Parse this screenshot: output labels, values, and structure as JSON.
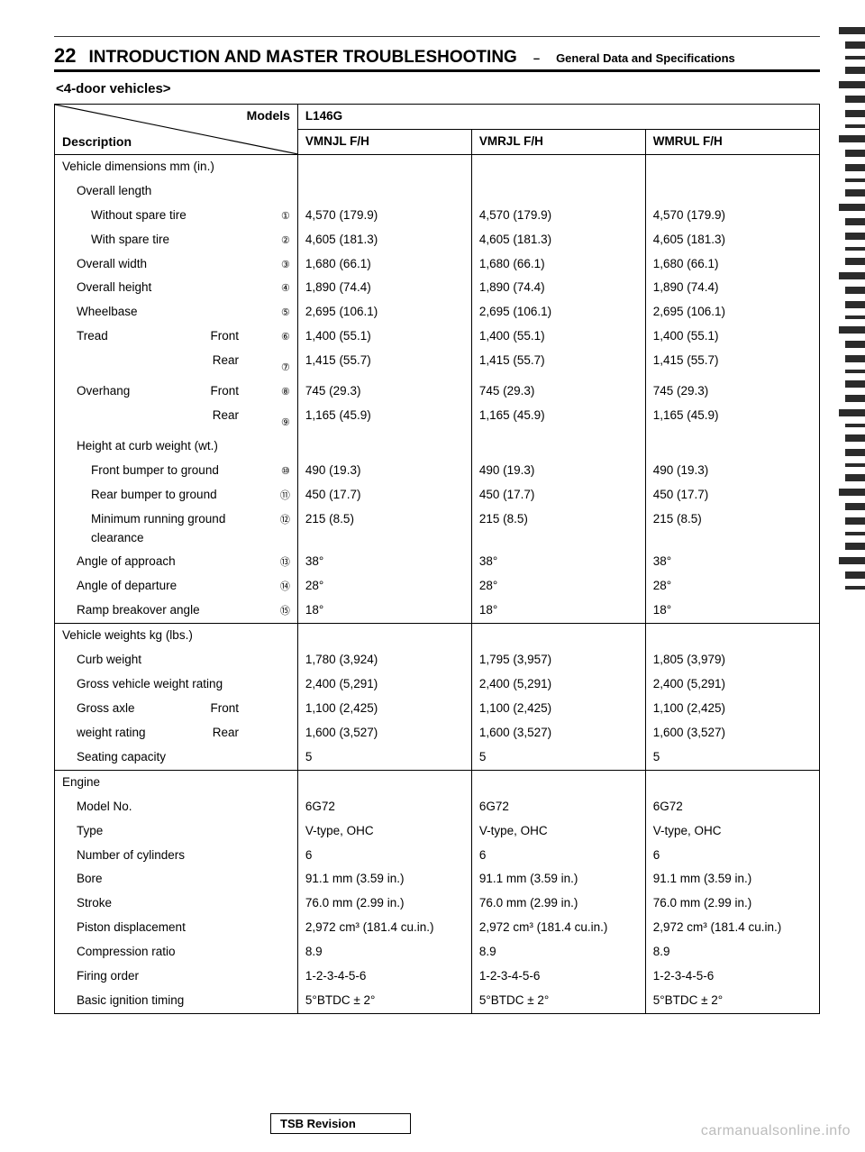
{
  "page_number": "22",
  "header_title": "INTRODUCTION AND MASTER TROUBLESHOOTING",
  "header_dash": "–",
  "header_sub": "General Data and Specifications",
  "section_title": "<4-door vehicles>",
  "table": {
    "models_label": "Models",
    "description_label": "Description",
    "model_header": "L146G",
    "variant_headers": [
      "VMNJL F/H",
      "VMRJL F/H",
      "WMRUL F/H"
    ],
    "groups": [
      {
        "rows": [
          {
            "label": "Vehicle dimensions      mm (in.)",
            "indent": 0,
            "marker": "",
            "v": [
              "",
              "",
              ""
            ]
          },
          {
            "label": "Overall length",
            "indent": 1,
            "marker": "",
            "v": [
              "",
              "",
              ""
            ]
          },
          {
            "label": "Without spare tire",
            "indent": 2,
            "marker": "①",
            "v": [
              "4,570 (179.9)",
              "4,570 (179.9)",
              "4,570 (179.9)"
            ]
          },
          {
            "label": "With spare tire",
            "indent": 2,
            "marker": "②",
            "v": [
              "4,605 (181.3)",
              "4,605 (181.3)",
              "4,605 (181.3)"
            ]
          },
          {
            "label": "Overall width",
            "indent": 1,
            "marker": "③",
            "v": [
              "1,680 (66.1)",
              "1,680 (66.1)",
              "1,680 (66.1)"
            ]
          },
          {
            "label": "Overall height",
            "indent": 1,
            "marker": "④",
            "v": [
              "1,890 (74.4)",
              "1,890 (74.4)",
              "1,890 (74.4)"
            ]
          },
          {
            "label": "Wheelbase",
            "indent": 1,
            "marker": "⑤",
            "v": [
              "2,695 (106.1)",
              "2,695 (106.1)",
              "2,695 (106.1)"
            ]
          },
          {
            "label": "Tread",
            "sublabel": "Front",
            "indent": 1,
            "marker": "⑥",
            "v": [
              "1,400 (55.1)",
              "1,400 (55.1)",
              "1,400 (55.1)"
            ]
          },
          {
            "label": "",
            "sublabel": "Rear",
            "indent": 1,
            "marker": "⑦",
            "v": [
              "1,415 (55.7)",
              "1,415 (55.7)",
              "1,415 (55.7)"
            ]
          },
          {
            "label": "Overhang",
            "sublabel": "Front",
            "indent": 1,
            "marker": "⑧",
            "v": [
              "745 (29.3)",
              "745 (29.3)",
              "745 (29.3)"
            ]
          },
          {
            "label": "",
            "sublabel": "Rear",
            "indent": 1,
            "marker": "⑨",
            "v": [
              "1,165 (45.9)",
              "1,165 (45.9)",
              "1,165 (45.9)"
            ]
          },
          {
            "label": "Height at curb weight      (wt.)",
            "indent": 1,
            "marker": "",
            "v": [
              "",
              "",
              ""
            ]
          },
          {
            "label": "Front bumper to ground",
            "indent": 2,
            "marker": "⑩",
            "v": [
              "490 (19.3)",
              "490 (19.3)",
              "490 (19.3)"
            ]
          },
          {
            "label": "Rear bumper to ground",
            "indent": 2,
            "marker": "⑪",
            "v": [
              "450 (17.7)",
              "450 (17.7)",
              "450 (17.7)"
            ]
          },
          {
            "label": "Minimum running ground clearance",
            "indent": 2,
            "marker": "⑫",
            "v": [
              "215 (8.5)",
              "215 (8.5)",
              "215 (8.5)"
            ]
          },
          {
            "label": "Angle of approach",
            "indent": 1,
            "marker": "⑬",
            "v": [
              "38°",
              "38°",
              "38°"
            ]
          },
          {
            "label": "Angle of departure",
            "indent": 1,
            "marker": "⑭",
            "v": [
              "28°",
              "28°",
              "28°"
            ]
          },
          {
            "label": "Ramp breakover angle",
            "indent": 1,
            "marker": "⑮",
            "v": [
              "18°",
              "18°",
              "18°"
            ]
          }
        ]
      },
      {
        "rows": [
          {
            "label": "Vehicle weights      kg (lbs.)",
            "indent": 0,
            "marker": "",
            "v": [
              "",
              "",
              ""
            ]
          },
          {
            "label": "Curb weight",
            "indent": 1,
            "marker": "",
            "v": [
              "1,780 (3,924)",
              "1,795 (3,957)",
              "1,805 (3,979)"
            ]
          },
          {
            "label": "Gross vehicle weight rating",
            "indent": 1,
            "marker": "",
            "v": [
              "2,400 (5,291)",
              "2,400 (5,291)",
              "2,400 (5,291)"
            ]
          },
          {
            "label": "Gross axle",
            "sublabel": "Front",
            "indent": 1,
            "marker": "",
            "v": [
              "1,100 (2,425)",
              "1,100 (2,425)",
              "1,100 (2,425)"
            ]
          },
          {
            "label": "weight rating",
            "sublabel": "Rear",
            "indent": 1,
            "marker": "",
            "v": [
              "1,600 (3,527)",
              "1,600 (3,527)",
              "1,600 (3,527)"
            ]
          },
          {
            "label": "Seating capacity",
            "indent": 1,
            "marker": "",
            "v": [
              "5",
              "5",
              "5"
            ]
          }
        ]
      },
      {
        "rows": [
          {
            "label": "Engine",
            "indent": 0,
            "marker": "",
            "v": [
              "",
              "",
              ""
            ]
          },
          {
            "label": "Model No.",
            "indent": 1,
            "marker": "",
            "v": [
              "6G72",
              "6G72",
              "6G72"
            ]
          },
          {
            "label": "Type",
            "indent": 1,
            "marker": "",
            "v": [
              "V-type, OHC",
              "V-type, OHC",
              "V-type, OHC"
            ]
          },
          {
            "label": "Number of cylinders",
            "indent": 1,
            "marker": "",
            "v": [
              "6",
              "6",
              "6"
            ]
          },
          {
            "label": "Bore",
            "indent": 1,
            "marker": "",
            "v": [
              "91.1 mm (3.59 in.)",
              "91.1 mm (3.59 in.)",
              "91.1 mm (3.59 in.)"
            ]
          },
          {
            "label": "Stroke",
            "indent": 1,
            "marker": "",
            "v": [
              "76.0 mm (2.99 in.)",
              "76.0 mm (2.99 in.)",
              "76.0 mm (2.99 in.)"
            ]
          },
          {
            "label": "Piston displacement",
            "indent": 1,
            "marker": "",
            "v": [
              "2,972 cm³ (181.4 cu.in.)",
              "2,972 cm³ (181.4 cu.in.)",
              "2,972 cm³ (181.4 cu.in.)"
            ]
          },
          {
            "label": "Compression ratio",
            "indent": 1,
            "marker": "",
            "v": [
              "8.9",
              "8.9",
              "8.9"
            ]
          },
          {
            "label": "Firing order",
            "indent": 1,
            "marker": "",
            "v": [
              "1-2-3-4-5-6",
              "1-2-3-4-5-6",
              "1-2-3-4-5-6"
            ]
          },
          {
            "label": "Basic ignition timing",
            "indent": 1,
            "marker": "",
            "v": [
              "5°BTDC ± 2°",
              "5°BTDC ± 2°",
              "5°BTDC ± 2°"
            ]
          }
        ]
      }
    ]
  },
  "tsb_label": "TSB Revision",
  "watermark": "carmanualsonline.info"
}
